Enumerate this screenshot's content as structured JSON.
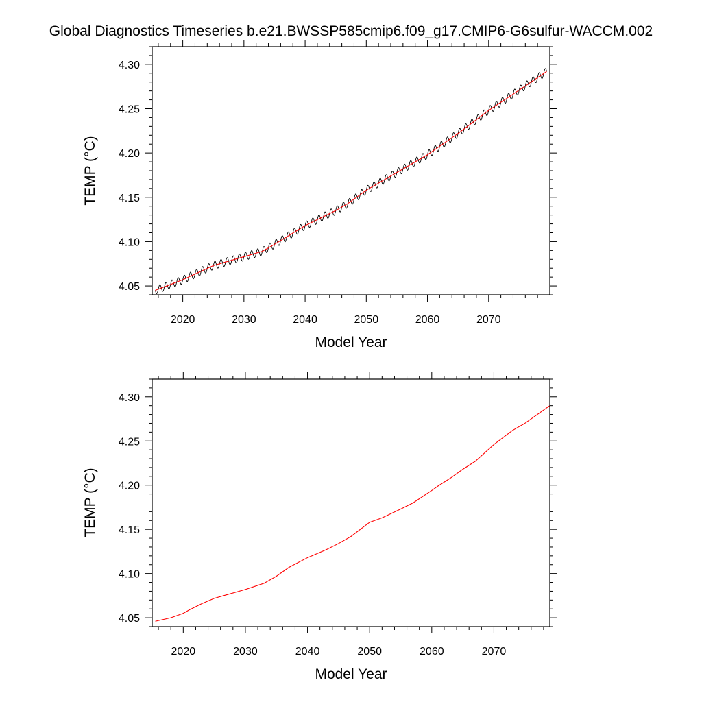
{
  "title": "Global Diagnostics Timeseries b.e21.BWSSP585cmip6.f09_g17.CMIP6-G6sulfur-WACCM.002",
  "chart_data": [
    {
      "type": "line",
      "xlabel": "Model Year",
      "ylabel": "TEMP (°C)",
      "xlim": [
        2015,
        2080
      ],
      "ylim": [
        4.04,
        4.32
      ],
      "x_ticks": [
        2020,
        2030,
        2040,
        2050,
        2060,
        2070
      ],
      "y_ticks": [
        4.05,
        4.1,
        4.15,
        4.2,
        4.25,
        4.3
      ],
      "x_tick_labels": [
        "2020",
        "2030",
        "2040",
        "2050",
        "2060",
        "2070"
      ],
      "y_tick_labels": [
        "4.05",
        "4.10",
        "4.15",
        "4.20",
        "4.25",
        "4.30"
      ],
      "grid": false,
      "series": [
        {
          "kind": "monthly",
          "color": "#000000",
          "seasonal_amplitude": 0.0045,
          "x": [
            2015.5,
            2020,
            2025,
            2030,
            2033,
            2035,
            2040,
            2045,
            2047,
            2050,
            2055,
            2060,
            2065,
            2070,
            2075,
            2079.5
          ],
          "y": [
            4.045,
            4.057,
            4.073,
            4.083,
            4.089,
            4.097,
            4.118,
            4.135,
            4.143,
            4.158,
            4.178,
            4.198,
            4.222,
            4.248,
            4.271,
            4.292
          ]
        },
        {
          "kind": "annual-mean",
          "color": "#ff0000",
          "x": [
            2015.5,
            2020,
            2025,
            2030,
            2033,
            2035,
            2040,
            2045,
            2047,
            2050,
            2055,
            2060,
            2065,
            2070,
            2075,
            2079.5
          ],
          "y": [
            4.045,
            4.057,
            4.073,
            4.083,
            4.089,
            4.097,
            4.118,
            4.135,
            4.143,
            4.158,
            4.178,
            4.198,
            4.222,
            4.248,
            4.271,
            4.292
          ]
        }
      ]
    },
    {
      "type": "line",
      "xlabel": "Model Year",
      "ylabel": "TEMP (°C)",
      "xlim": [
        2015,
        2079
      ],
      "ylim": [
        4.04,
        4.32
      ],
      "x_ticks": [
        2020,
        2030,
        2040,
        2050,
        2060,
        2070
      ],
      "y_ticks": [
        4.05,
        4.1,
        4.15,
        4.2,
        4.25,
        4.3
      ],
      "x_tick_labels": [
        "2020",
        "2030",
        "2040",
        "2050",
        "2060",
        "2070"
      ],
      "y_tick_labels": [
        "4.05",
        "4.10",
        "4.15",
        "4.20",
        "4.25",
        "4.30"
      ],
      "grid": false,
      "series": [
        {
          "kind": "annual-mean",
          "color": "#ff0000",
          "x": [
            2015.5,
            2018,
            2020,
            2021,
            2023,
            2025,
            2027,
            2030,
            2033,
            2035,
            2037,
            2040,
            2043,
            2045,
            2047,
            2050,
            2052,
            2055,
            2057,
            2060,
            2061,
            2063,
            2065,
            2067,
            2070,
            2073,
            2075,
            2079
          ],
          "y": [
            4.046,
            4.05,
            4.055,
            4.059,
            4.066,
            4.072,
            4.076,
            4.082,
            4.089,
            4.097,
            4.107,
            4.118,
            4.127,
            4.134,
            4.142,
            4.158,
            4.163,
            4.173,
            4.18,
            4.194,
            4.199,
            4.208,
            4.218,
            4.227,
            4.246,
            4.262,
            4.27,
            4.29
          ]
        }
      ]
    }
  ]
}
